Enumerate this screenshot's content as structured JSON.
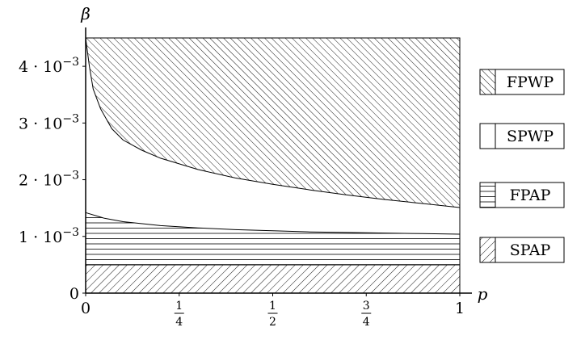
{
  "chart_data": {
    "type": "area",
    "title": "",
    "xlabel": "p",
    "ylabel": "β",
    "xlim": [
      0,
      1
    ],
    "ylim": [
      0,
      0.0045
    ],
    "x_ticks": [
      {
        "value": 0,
        "label": "0"
      },
      {
        "value": 0.25,
        "label": "1/4",
        "num": "1",
        "den": "4"
      },
      {
        "value": 0.5,
        "label": "1/2",
        "num": "1",
        "den": "2"
      },
      {
        "value": 0.75,
        "label": "3/4",
        "num": "3",
        "den": "4"
      },
      {
        "value": 1,
        "label": "1"
      }
    ],
    "y_ticks": [
      {
        "value": 0,
        "label": "0",
        "mantissa": "",
        "exp": ""
      },
      {
        "value": 0.001,
        "label": "1 · 10^-3",
        "mantissa": "1 · 10",
        "exp": "−3"
      },
      {
        "value": 0.002,
        "label": "2 · 10^-3",
        "mantissa": "2 · 10",
        "exp": "−3"
      },
      {
        "value": 0.003,
        "label": "3 · 10^-3",
        "mantissa": "3 · 10",
        "exp": "−3"
      },
      {
        "value": 0.004,
        "label": "4 · 10^-3",
        "mantissa": "4 · 10",
        "exp": "−3"
      }
    ],
    "legend_position": "right",
    "regions": [
      {
        "name": "FPWP",
        "pattern": "diagonal-fine"
      },
      {
        "name": "SPWP",
        "pattern": "none"
      },
      {
        "name": "FPAP",
        "pattern": "horizontal"
      },
      {
        "name": "SPAP",
        "pattern": "diagonal-back"
      }
    ],
    "boundaries": {
      "fpwp_lower": {
        "x": [
          0,
          0.01,
          0.02,
          0.04,
          0.07,
          0.1,
          0.15,
          0.2,
          0.3,
          0.4,
          0.5,
          0.6,
          0.7,
          0.8,
          0.9,
          1.0
        ],
        "y": [
          0.0045,
          0.004,
          0.0036,
          0.00325,
          0.0029,
          0.0027,
          0.00252,
          0.00238,
          0.00218,
          0.00203,
          0.00192,
          0.00182,
          0.00173,
          0.00165,
          0.00158,
          0.00151
        ]
      },
      "fpap_upper": {
        "x": [
          0,
          0.05,
          0.1,
          0.2,
          0.3,
          0.4,
          0.5,
          0.6,
          0.7,
          0.8,
          0.9,
          1.0
        ],
        "y": [
          0.00142,
          0.00132,
          0.00126,
          0.00119,
          0.00115,
          0.00112,
          0.0011,
          0.00108,
          0.00107,
          0.00106,
          0.00105,
          0.00104
        ]
      },
      "spap_upper": {
        "x": [
          0,
          1
        ],
        "y": [
          0.0005,
          0.0005
        ]
      }
    }
  }
}
